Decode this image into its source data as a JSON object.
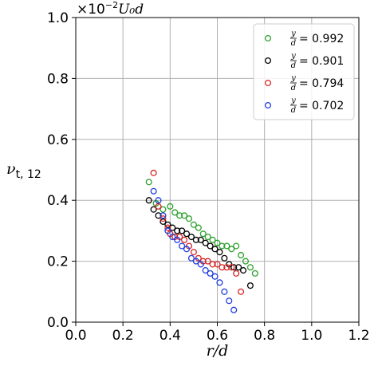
{
  "chart_data": {
    "type": "scatter",
    "title": "",
    "xlabel": "r/d",
    "ylabel": "ν_{t,12}",
    "ylabel_main": "ν",
    "ylabel_sub": "t, 12",
    "xlim": [
      0.0,
      1.2
    ],
    "ylim": [
      0.0,
      1.0
    ],
    "xticks": [
      "0.0",
      "0.2",
      "0.4",
      "0.6",
      "0.8",
      "1.0",
      "1.2"
    ],
    "yticks": [
      "0.0",
      "0.2",
      "0.4",
      "0.6",
      "0.8",
      "1.0"
    ],
    "scale_note": {
      "base": "×10",
      "exp": "−2",
      "quantity": "U₀d"
    },
    "grid": true,
    "legend_position": "upper-right",
    "series": [
      {
        "name": "y/d = 0.992",
        "legend_num": "y",
        "legend_den": "d",
        "legend_value": "= 0.992",
        "color": "#2ca02c",
        "x": [
          0.31,
          0.34,
          0.37,
          0.4,
          0.42,
          0.44,
          0.46,
          0.48,
          0.5,
          0.52,
          0.54,
          0.56,
          0.58,
          0.6,
          0.62,
          0.64,
          0.66,
          0.68,
          0.7,
          0.72,
          0.74,
          0.76
        ],
        "y": [
          0.46,
          0.39,
          0.37,
          0.38,
          0.36,
          0.35,
          0.35,
          0.34,
          0.32,
          0.31,
          0.29,
          0.28,
          0.27,
          0.26,
          0.25,
          0.25,
          0.24,
          0.25,
          0.22,
          0.2,
          0.18,
          0.16
        ]
      },
      {
        "name": "y/d = 0.901",
        "legend_num": "y",
        "legend_den": "d",
        "legend_value": "= 0.901",
        "color": "#000000",
        "x": [
          0.31,
          0.33,
          0.35,
          0.37,
          0.39,
          0.41,
          0.43,
          0.45,
          0.47,
          0.49,
          0.51,
          0.53,
          0.55,
          0.57,
          0.59,
          0.61,
          0.63,
          0.65,
          0.67,
          0.69,
          0.71,
          0.74
        ],
        "y": [
          0.4,
          0.37,
          0.35,
          0.33,
          0.32,
          0.31,
          0.3,
          0.3,
          0.29,
          0.28,
          0.27,
          0.27,
          0.26,
          0.25,
          0.24,
          0.23,
          0.21,
          0.19,
          0.18,
          0.18,
          0.17,
          0.12
        ]
      },
      {
        "name": "y/d = 0.794",
        "legend_num": "y",
        "legend_den": "d",
        "legend_value": "= 0.794",
        "color": "#d62728",
        "x": [
          0.33,
          0.35,
          0.37,
          0.39,
          0.4,
          0.42,
          0.44,
          0.46,
          0.48,
          0.5,
          0.52,
          0.54,
          0.56,
          0.58,
          0.6,
          0.62,
          0.64,
          0.66,
          0.68,
          0.7
        ],
        "y": [
          0.49,
          0.38,
          0.34,
          0.31,
          0.29,
          0.28,
          0.28,
          0.27,
          0.25,
          0.23,
          0.21,
          0.2,
          0.2,
          0.19,
          0.19,
          0.18,
          0.18,
          0.18,
          0.16,
          0.1
        ]
      },
      {
        "name": "y/d = 0.702",
        "legend_num": "y",
        "legend_den": "d",
        "legend_value": "= 0.702",
        "color": "#1f3fe0",
        "x": [
          0.33,
          0.35,
          0.37,
          0.39,
          0.41,
          0.43,
          0.45,
          0.47,
          0.49,
          0.51,
          0.53,
          0.55,
          0.57,
          0.59,
          0.61,
          0.63,
          0.65,
          0.67
        ],
        "y": [
          0.43,
          0.4,
          0.35,
          0.3,
          0.28,
          0.27,
          0.25,
          0.24,
          0.21,
          0.2,
          0.19,
          0.17,
          0.16,
          0.15,
          0.13,
          0.1,
          0.07,
          0.04
        ]
      }
    ]
  }
}
